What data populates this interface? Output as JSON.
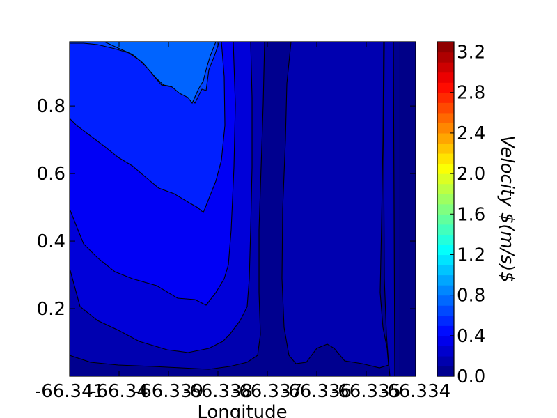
{
  "chart_data": {
    "type": "contourf",
    "xlabel": "Longitude",
    "ylabel": "",
    "colorbar_label": "Velocity $(m/s)$",
    "x_ticks": [
      "-66.341",
      "-66.34",
      "-66.339",
      "-66.338",
      "-66.337",
      "-66.336",
      "-66.335",
      "-66.334"
    ],
    "y_ticks": [
      "0.2",
      "0.4",
      "0.6",
      "0.8"
    ],
    "y_tick_values": [
      0.2,
      0.4,
      0.6,
      0.8
    ],
    "ylim": [
      0.0,
      0.99
    ],
    "colorbar_ticks": [
      "0.0",
      "0.4",
      "0.8",
      "1.2",
      "1.6",
      "2.0",
      "2.4",
      "2.8",
      "3.2"
    ],
    "colorbar_range": [
      0.0,
      3.3
    ],
    "colormap": "jet",
    "levels": [
      0.0,
      0.1,
      0.2,
      0.3,
      0.4,
      0.5,
      0.6,
      0.7
    ],
    "level_colors": [
      "#00008f",
      "#0000b0",
      "#0000d9",
      "#0000f5",
      "#0020ff",
      "#0044ff",
      "#0064ff"
    ]
  }
}
